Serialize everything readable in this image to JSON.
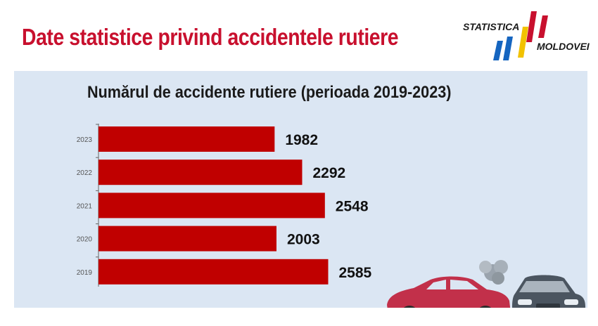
{
  "header": {
    "title": "Date statistice privind accidentele rutiere"
  },
  "logo": {
    "line1": "STATISTICA",
    "line2": "MOLDOVEI",
    "colors": [
      "#1565c0",
      "#f2c200",
      "#c8102e"
    ]
  },
  "chart_data": {
    "type": "bar",
    "orientation": "horizontal",
    "title": "Numărul de accidente rutiere (perioada 2019-2023)",
    "categories": [
      "2023",
      "2022",
      "2021",
      "2020",
      "2019"
    ],
    "values": [
      1982,
      2292,
      2548,
      2003,
      2585
    ],
    "xlim": [
      0,
      3500
    ],
    "grid": false,
    "bar_color": "#c00000"
  },
  "colors": {
    "title": "#c8102e",
    "panel_background": "#dbe6f3",
    "bar": "#c00000"
  }
}
